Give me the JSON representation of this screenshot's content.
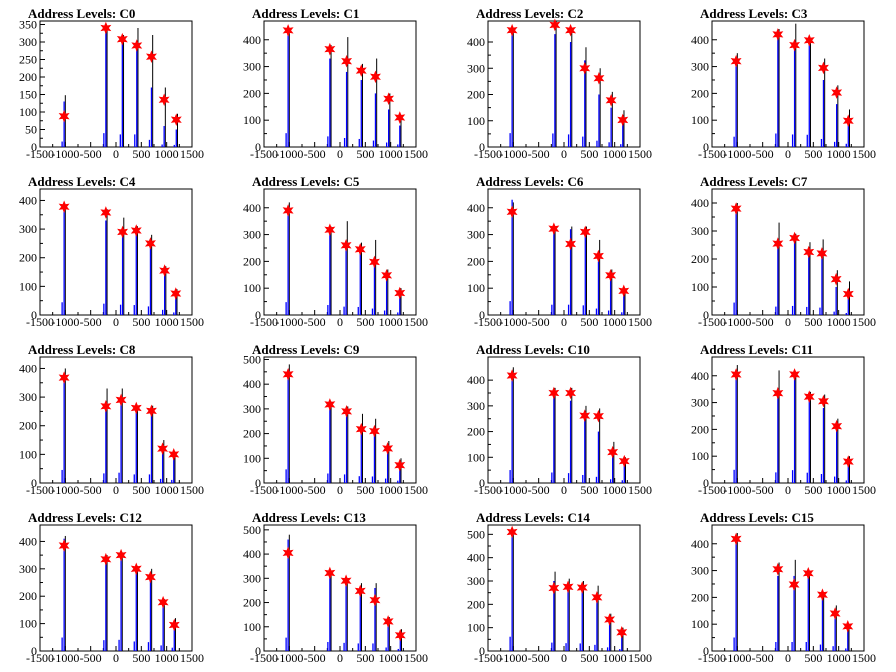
{
  "chart_data": [
    {
      "type": "bar",
      "title": "Address Levels: C0",
      "xlim": [
        -1500,
        1500
      ],
      "ylim": [
        0,
        360
      ],
      "yticks": [
        0,
        50,
        100,
        150,
        200,
        250,
        300,
        350
      ],
      "xticks": [
        -1500,
        -1000,
        -500,
        0,
        500,
        1000,
        1500
      ],
      "peaks": [
        {
          "x": -1024,
          "black": 148,
          "blue": 130,
          "star": 88
        },
        {
          "x": -200,
          "black": 340,
          "blue": 330,
          "star": 340
        },
        {
          "x": 125,
          "black": 320,
          "blue": 300,
          "star": 308
        },
        {
          "x": 410,
          "black": 340,
          "blue": 300,
          "star": 290
        },
        {
          "x": 700,
          "black": 320,
          "blue": 170,
          "star": 258
        },
        {
          "x": 950,
          "black": 170,
          "blue": 60,
          "star": 135
        },
        {
          "x": 1190,
          "black": 95,
          "blue": 50,
          "star": 78
        }
      ]
    },
    {
      "type": "bar",
      "title": "Address Levels: C1",
      "xlim": [
        -1500,
        1500
      ],
      "ylim": [
        0,
        470
      ],
      "yticks": [
        0,
        100,
        200,
        300,
        400
      ],
      "xticks": [
        -1500,
        -1000,
        -500,
        0,
        500,
        1000,
        1500
      ],
      "peaks": [
        {
          "x": -1024,
          "black": 440,
          "blue": 430,
          "star": 435
        },
        {
          "x": -200,
          "black": 380,
          "blue": 330,
          "star": 365
        },
        {
          "x": 130,
          "black": 410,
          "blue": 280,
          "star": 320
        },
        {
          "x": 420,
          "black": 310,
          "blue": 250,
          "star": 285
        },
        {
          "x": 700,
          "black": 330,
          "blue": 200,
          "star": 262
        },
        {
          "x": 960,
          "black": 200,
          "blue": 140,
          "star": 180
        },
        {
          "x": 1180,
          "black": 120,
          "blue": 80,
          "star": 110
        }
      ]
    },
    {
      "type": "bar",
      "title": "Address Levels: C2",
      "xlim": [
        -1500,
        1500
      ],
      "ylim": [
        0,
        480
      ],
      "yticks": [
        0,
        100,
        200,
        300,
        400
      ],
      "xticks": [
        -1500,
        -1000,
        -500,
        0,
        500,
        1000,
        1500
      ],
      "peaks": [
        {
          "x": -1024,
          "black": 450,
          "blue": 440,
          "star": 445
        },
        {
          "x": -180,
          "black": 480,
          "blue": 430,
          "star": 465
        },
        {
          "x": 130,
          "black": 450,
          "blue": 400,
          "star": 445
        },
        {
          "x": 410,
          "black": 380,
          "blue": 330,
          "star": 300
        },
        {
          "x": 690,
          "black": 300,
          "blue": 200,
          "star": 262
        },
        {
          "x": 930,
          "black": 210,
          "blue": 150,
          "star": 178
        },
        {
          "x": 1160,
          "black": 140,
          "blue": 90,
          "star": 103
        }
      ]
    },
    {
      "type": "bar",
      "title": "Address Levels: C3",
      "xlim": [
        -1500,
        1500
      ],
      "ylim": [
        0,
        470
      ],
      "yticks": [
        0,
        100,
        200,
        300,
        400
      ],
      "xticks": [
        -1500,
        -1000,
        -500,
        0,
        500,
        1000,
        1500
      ],
      "peaks": [
        {
          "x": -1024,
          "black": 350,
          "blue": 320,
          "star": 320
        },
        {
          "x": -200,
          "black": 440,
          "blue": 420,
          "star": 420
        },
        {
          "x": 130,
          "black": 460,
          "blue": 390,
          "star": 380
        },
        {
          "x": 420,
          "black": 400,
          "blue": 380,
          "star": 398
        },
        {
          "x": 700,
          "black": 330,
          "blue": 250,
          "star": 295
        },
        {
          "x": 960,
          "black": 230,
          "blue": 160,
          "star": 203
        },
        {
          "x": 1190,
          "black": 140,
          "blue": 100,
          "star": 98
        }
      ]
    },
    {
      "type": "bar",
      "title": "Address Levels: C4",
      "xlim": [
        -1500,
        1500
      ],
      "ylim": [
        0,
        440
      ],
      "yticks": [
        0,
        100,
        200,
        300,
        400
      ],
      "xticks": [
        -1500,
        -1000,
        -500,
        0,
        500,
        1000,
        1500
      ],
      "peaks": [
        {
          "x": -1024,
          "black": 380,
          "blue": 370,
          "star": 378
        },
        {
          "x": -200,
          "black": 370,
          "blue": 330,
          "star": 358
        },
        {
          "x": 130,
          "black": 340,
          "blue": 300,
          "star": 290
        },
        {
          "x": 400,
          "black": 310,
          "blue": 290,
          "star": 295
        },
        {
          "x": 680,
          "black": 280,
          "blue": 250,
          "star": 250
        },
        {
          "x": 960,
          "black": 170,
          "blue": 150,
          "star": 155
        },
        {
          "x": 1180,
          "black": 90,
          "blue": 75,
          "star": 75
        }
      ]
    },
    {
      "type": "bar",
      "title": "Address Levels: C5",
      "xlim": [
        -1500,
        1500
      ],
      "ylim": [
        0,
        470
      ],
      "yticks": [
        0,
        100,
        200,
        300,
        400
      ],
      "xticks": [
        -1500,
        -1000,
        -500,
        0,
        500,
        1000,
        1500
      ],
      "peaks": [
        {
          "x": -1024,
          "black": 420,
          "blue": 400,
          "star": 390
        },
        {
          "x": -200,
          "black": 330,
          "blue": 310,
          "star": 318
        },
        {
          "x": 120,
          "black": 350,
          "blue": 260,
          "star": 260
        },
        {
          "x": 400,
          "black": 270,
          "blue": 250,
          "star": 245
        },
        {
          "x": 680,
          "black": 280,
          "blue": 200,
          "star": 198
        },
        {
          "x": 920,
          "black": 170,
          "blue": 140,
          "star": 148
        },
        {
          "x": 1180,
          "black": 100,
          "blue": 80,
          "star": 82
        }
      ]
    },
    {
      "type": "bar",
      "title": "Address Levels: C6",
      "xlim": [
        -1500,
        1500
      ],
      "ylim": [
        0,
        470
      ],
      "yticks": [
        0,
        100,
        200,
        300,
        400
      ],
      "xticks": [
        -1500,
        -1000,
        -500,
        0,
        500,
        1000,
        1500
      ],
      "peaks": [
        {
          "x": -1024,
          "black": 420,
          "blue": 430,
          "star": 385
        },
        {
          "x": -200,
          "black": 330,
          "blue": 320,
          "star": 322
        },
        {
          "x": 130,
          "black": 330,
          "blue": 320,
          "star": 265
        },
        {
          "x": 420,
          "black": 330,
          "blue": 300,
          "star": 310
        },
        {
          "x": 680,
          "black": 280,
          "blue": 200,
          "star": 220
        },
        {
          "x": 920,
          "black": 170,
          "blue": 140,
          "star": 148
        },
        {
          "x": 1180,
          "black": 100,
          "blue": 85,
          "star": 90
        }
      ]
    },
    {
      "type": "bar",
      "title": "Address Levels: C7",
      "xlim": [
        -1500,
        1500
      ],
      "ylim": [
        0,
        450
      ],
      "yticks": [
        0,
        100,
        200,
        300,
        400
      ],
      "xticks": [
        -1500,
        -1000,
        -500,
        0,
        500,
        1000,
        1500
      ],
      "peaks": [
        {
          "x": -1024,
          "black": 400,
          "blue": 370,
          "star": 380
        },
        {
          "x": -200,
          "black": 330,
          "blue": 250,
          "star": 255
        },
        {
          "x": 130,
          "black": 290,
          "blue": 270,
          "star": 275
        },
        {
          "x": 410,
          "black": 260,
          "blue": 240,
          "star": 225
        },
        {
          "x": 670,
          "black": 270,
          "blue": 220,
          "star": 220
        },
        {
          "x": 950,
          "black": 160,
          "blue": 100,
          "star": 128
        },
        {
          "x": 1190,
          "black": 120,
          "blue": 60,
          "star": 75
        }
      ]
    },
    {
      "type": "bar",
      "title": "Address Levels: C8",
      "xlim": [
        -1500,
        1500
      ],
      "ylim": [
        0,
        440
      ],
      "yticks": [
        0,
        100,
        200,
        300,
        400
      ],
      "xticks": [
        -1500,
        -1000,
        -500,
        0,
        500,
        1000,
        1500
      ],
      "peaks": [
        {
          "x": -1024,
          "black": 400,
          "blue": 380,
          "star": 368
        },
        {
          "x": -200,
          "black": 330,
          "blue": 280,
          "star": 268
        },
        {
          "x": 100,
          "black": 330,
          "blue": 300,
          "star": 290
        },
        {
          "x": 400,
          "black": 270,
          "blue": 250,
          "star": 262
        },
        {
          "x": 700,
          "black": 270,
          "blue": 250,
          "star": 252
        },
        {
          "x": 920,
          "black": 150,
          "blue": 120,
          "star": 120
        },
        {
          "x": 1140,
          "black": 110,
          "blue": 90,
          "star": 100
        }
      ]
    },
    {
      "type": "bar",
      "title": "Address Levels: C9",
      "xlim": [
        -1500,
        1500
      ],
      "ylim": [
        0,
        510
      ],
      "yticks": [
        0,
        100,
        200,
        300,
        400,
        500
      ],
      "xticks": [
        -1500,
        -1000,
        -500,
        0,
        500,
        1000,
        1500
      ],
      "peaks": [
        {
          "x": -1024,
          "black": 480,
          "blue": 460,
          "star": 440
        },
        {
          "x": -200,
          "black": 330,
          "blue": 320,
          "star": 318
        },
        {
          "x": 130,
          "black": 310,
          "blue": 290,
          "star": 290
        },
        {
          "x": 420,
          "black": 280,
          "blue": 230,
          "star": 218
        },
        {
          "x": 680,
          "black": 260,
          "blue": 220,
          "star": 210
        },
        {
          "x": 940,
          "black": 170,
          "blue": 150,
          "star": 140
        },
        {
          "x": 1180,
          "black": 100,
          "blue": 80,
          "star": 72
        }
      ]
    },
    {
      "type": "bar",
      "title": "Address Levels: C10",
      "xlim": [
        -1500,
        1500
      ],
      "ylim": [
        0,
        490
      ],
      "yticks": [
        0,
        100,
        200,
        300,
        400
      ],
      "xticks": [
        -1500,
        -1000,
        -500,
        0,
        500,
        1000,
        1500
      ],
      "peaks": [
        {
          "x": -1024,
          "black": 450,
          "blue": 420,
          "star": 418
        },
        {
          "x": -200,
          "black": 370,
          "blue": 340,
          "star": 350
        },
        {
          "x": 130,
          "black": 370,
          "blue": 320,
          "star": 350
        },
        {
          "x": 410,
          "black": 300,
          "blue": 260,
          "star": 262
        },
        {
          "x": 680,
          "black": 290,
          "blue": 200,
          "star": 260
        },
        {
          "x": 960,
          "black": 160,
          "blue": 120,
          "star": 120
        },
        {
          "x": 1190,
          "black": 100,
          "blue": 90,
          "star": 85
        }
      ]
    },
    {
      "type": "bar",
      "title": "Address Levels: C11",
      "xlim": [
        -1500,
        1500
      ],
      "ylim": [
        0,
        470
      ],
      "yticks": [
        0,
        100,
        200,
        300,
        400
      ],
      "xticks": [
        -1500,
        -1000,
        -500,
        0,
        500,
        1000,
        1500
      ],
      "peaks": [
        {
          "x": -1024,
          "black": 440,
          "blue": 410,
          "star": 405
        },
        {
          "x": -200,
          "black": 420,
          "blue": 330,
          "star": 335
        },
        {
          "x": 130,
          "black": 410,
          "blue": 400,
          "star": 405
        },
        {
          "x": 420,
          "black": 340,
          "blue": 320,
          "star": 322
        },
        {
          "x": 700,
          "black": 330,
          "blue": 280,
          "star": 305
        },
        {
          "x": 960,
          "black": 240,
          "blue": 200,
          "star": 212
        },
        {
          "x": 1190,
          "black": 100,
          "blue": 80,
          "star": 80
        }
      ]
    },
    {
      "type": "bar",
      "title": "Address Levels: C12",
      "xlim": [
        -1500,
        1500
      ],
      "ylim": [
        0,
        460
      ],
      "yticks": [
        0,
        100,
        200,
        300,
        400
      ],
      "xticks": [
        -1500,
        -1000,
        -500,
        0,
        500,
        1000,
        1500
      ],
      "peaks": [
        {
          "x": -1024,
          "black": 420,
          "blue": 410,
          "star": 385
        },
        {
          "x": -200,
          "black": 350,
          "blue": 330,
          "star": 335
        },
        {
          "x": 100,
          "black": 360,
          "blue": 340,
          "star": 350
        },
        {
          "x": 400,
          "black": 310,
          "blue": 290,
          "star": 300
        },
        {
          "x": 680,
          "black": 300,
          "blue": 270,
          "star": 270
        },
        {
          "x": 930,
          "black": 190,
          "blue": 170,
          "star": 178
        },
        {
          "x": 1150,
          "black": 120,
          "blue": 100,
          "star": 95
        }
      ]
    },
    {
      "type": "bar",
      "title": "Address Levels: C13",
      "xlim": [
        -1500,
        1500
      ],
      "ylim": [
        0,
        520
      ],
      "yticks": [
        0,
        100,
        200,
        300,
        400,
        500
      ],
      "xticks": [
        -1500,
        -1000,
        -500,
        0,
        500,
        1000,
        1500
      ],
      "peaks": [
        {
          "x": -1024,
          "black": 480,
          "blue": 460,
          "star": 405
        },
        {
          "x": -200,
          "black": 330,
          "blue": 310,
          "star": 322
        },
        {
          "x": 120,
          "black": 300,
          "blue": 280,
          "star": 290
        },
        {
          "x": 400,
          "black": 280,
          "blue": 260,
          "star": 248
        },
        {
          "x": 690,
          "black": 280,
          "blue": 260,
          "star": 210
        },
        {
          "x": 950,
          "black": 140,
          "blue": 120,
          "star": 122
        },
        {
          "x": 1190,
          "black": 90,
          "blue": 70,
          "star": 65
        }
      ]
    },
    {
      "type": "bar",
      "title": "Address Levels: C14",
      "xlim": [
        -1500,
        1500
      ],
      "ylim": [
        0,
        540
      ],
      "yticks": [
        0,
        100,
        200,
        300,
        400,
        500
      ],
      "xticks": [
        -1500,
        -1000,
        -500,
        0,
        500,
        1000,
        1500
      ],
      "peaks": [
        {
          "x": -1024,
          "black": 520,
          "blue": 510,
          "star": 510
        },
        {
          "x": -200,
          "black": 340,
          "blue": 300,
          "star": 270
        },
        {
          "x": 80,
          "black": 310,
          "blue": 280,
          "star": 275
        },
        {
          "x": 360,
          "black": 300,
          "blue": 270,
          "star": 272
        },
        {
          "x": 650,
          "black": 280,
          "blue": 220,
          "star": 230
        },
        {
          "x": 900,
          "black": 160,
          "blue": 130,
          "star": 135
        },
        {
          "x": 1140,
          "black": 100,
          "blue": 70,
          "star": 80
        }
      ]
    },
    {
      "type": "bar",
      "title": "Address Levels: C15",
      "xlim": [
        -1500,
        1500
      ],
      "ylim": [
        0,
        470
      ],
      "yticks": [
        0,
        100,
        200,
        300,
        400
      ],
      "xticks": [
        -1500,
        -1000,
        -500,
        0,
        500,
        1000,
        1500
      ],
      "peaks": [
        {
          "x": -1024,
          "black": 440,
          "blue": 420,
          "star": 418
        },
        {
          "x": -200,
          "black": 330,
          "blue": 280,
          "star": 305
        },
        {
          "x": 120,
          "black": 340,
          "blue": 280,
          "star": 248
        },
        {
          "x": 400,
          "black": 300,
          "blue": 280,
          "star": 290
        },
        {
          "x": 680,
          "black": 220,
          "blue": 200,
          "star": 210
        },
        {
          "x": 930,
          "black": 170,
          "blue": 150,
          "star": 140
        },
        {
          "x": 1180,
          "black": 100,
          "blue": 80,
          "star": 92
        }
      ]
    }
  ],
  "colors": {
    "hist_blue": "#0000ff",
    "hist_black": "#000000",
    "star_fill": "#ff0000",
    "star_stroke": "#ff0000"
  }
}
